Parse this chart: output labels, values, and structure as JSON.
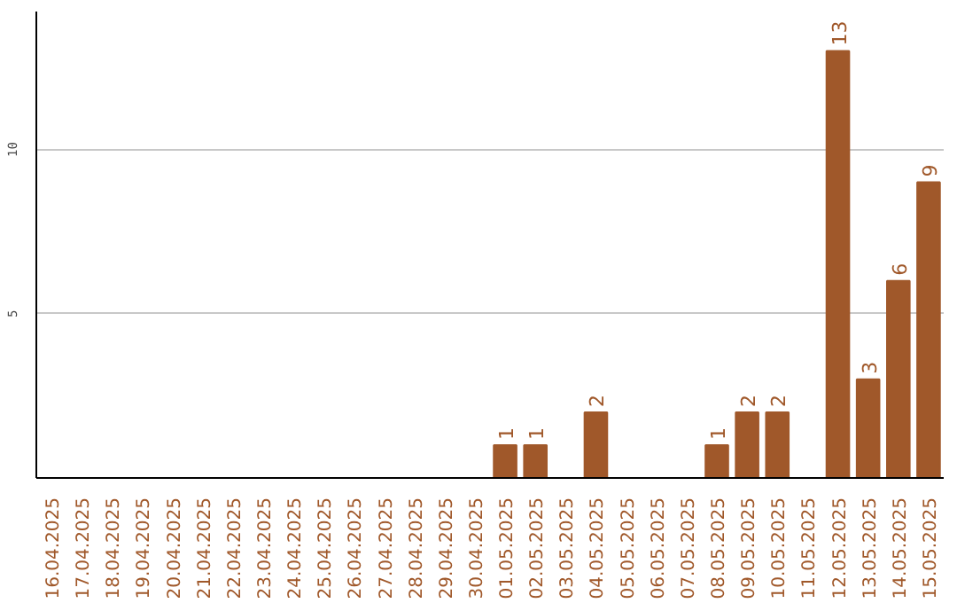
{
  "chart_data": {
    "type": "bar",
    "categories": [
      "16.04.2025",
      "17.04.2025",
      "18.04.2025",
      "19.04.2025",
      "20.04.2025",
      "21.04.2025",
      "22.04.2025",
      "23.04.2025",
      "24.04.2025",
      "25.04.2025",
      "26.04.2025",
      "27.04.2025",
      "28.04.2025",
      "29.04.2025",
      "30.04.2025",
      "01.05.2025",
      "02.05.2025",
      "03.05.2025",
      "04.05.2025",
      "05.05.2025",
      "06.05.2025",
      "07.05.2025",
      "08.05.2025",
      "09.05.2025",
      "10.05.2025",
      "11.05.2025",
      "12.05.2025",
      "13.05.2025",
      "14.05.2025",
      "15.05.2025"
    ],
    "values": [
      0,
      0,
      0,
      0,
      0,
      0,
      0,
      0,
      0,
      0,
      0,
      0,
      0,
      0,
      0,
      1,
      1,
      0,
      2,
      0,
      0,
      0,
      1,
      2,
      2,
      0,
      13,
      3,
      6,
      9
    ],
    "value_labels": [
      null,
      null,
      null,
      null,
      null,
      null,
      null,
      null,
      null,
      null,
      null,
      null,
      null,
      null,
      null,
      "1",
      "1",
      null,
      "2",
      null,
      null,
      null,
      "1",
      "2",
      "2",
      null,
      "13",
      "3",
      "6",
      "9"
    ],
    "color": "#a0582a",
    "ylim": [
      0,
      14.2
    ],
    "yticks": [
      5,
      10
    ],
    "grid": "y"
  }
}
